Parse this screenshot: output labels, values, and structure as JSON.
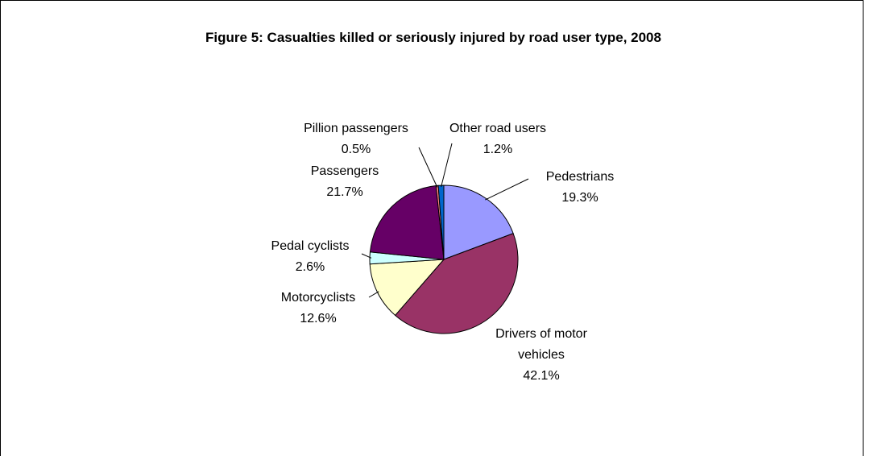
{
  "chart_data": {
    "type": "pie",
    "title": "Figure 5: Casualties killed or seriously injured by road user type, 2008",
    "categories": [
      "Pedestrians",
      "Drivers of motor vehicles",
      "Motorcyclists",
      "Pedal cyclists",
      "Passengers",
      "Pillion passengers",
      "Other road users"
    ],
    "values": [
      19.3,
      42.1,
      12.6,
      2.6,
      21.7,
      0.5,
      1.2
    ],
    "value_labels": [
      "19.3%",
      "42.1%",
      "12.6%",
      "2.6%",
      "21.7%",
      "0.5%",
      "1.2%"
    ],
    "colors": [
      "#9999ff",
      "#993366",
      "#ffffcc",
      "#ccffff",
      "#660066",
      "#ff8080",
      "#0066cc"
    ]
  }
}
